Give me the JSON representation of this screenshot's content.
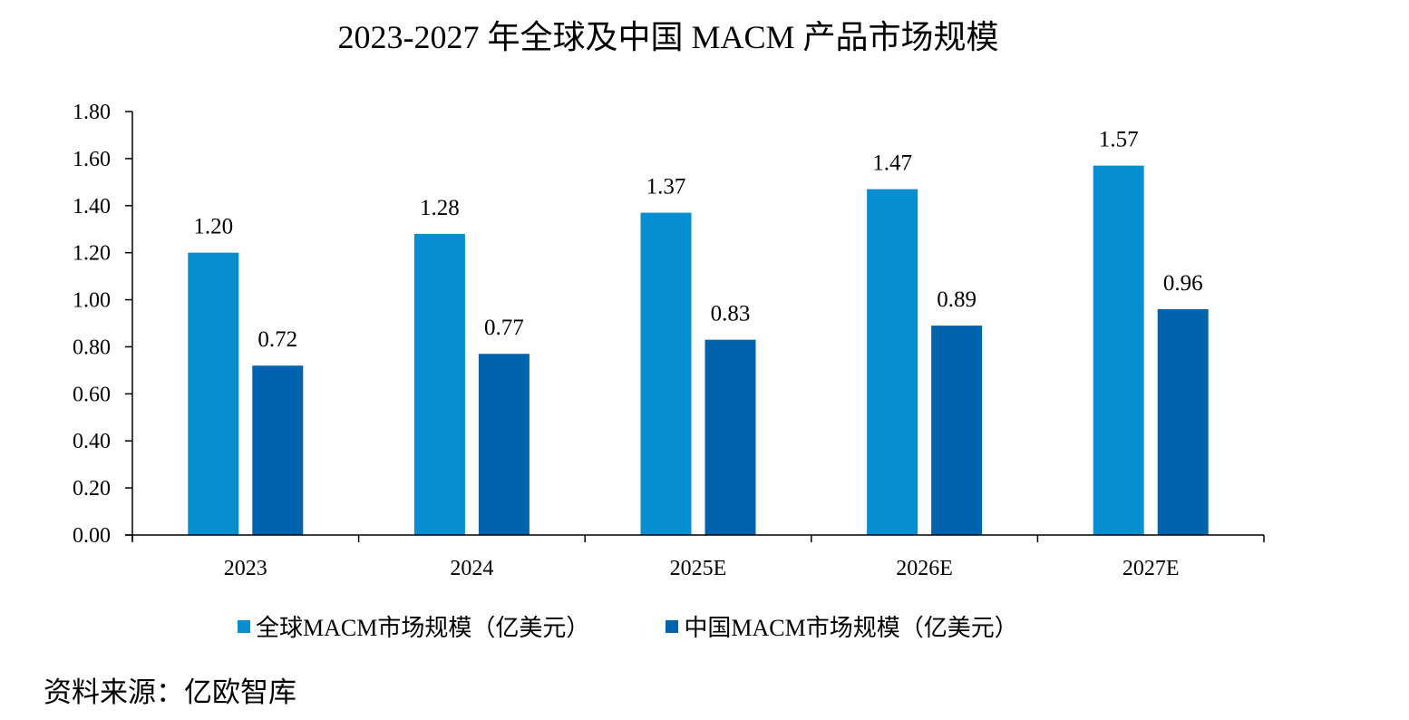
{
  "chart_data": {
    "type": "bar",
    "title": "2023-2027 年全球及中国 MACM 产品市场规模",
    "xlabel": "",
    "ylabel": "",
    "categories": [
      "2023",
      "2024",
      "2025E",
      "2026E",
      "2027E"
    ],
    "series": [
      {
        "name": "全球MACM市场规模（亿美元）",
        "color": "#068FD0",
        "values": [
          1.2,
          1.28,
          1.37,
          1.47,
          1.57
        ]
      },
      {
        "name": "中国MACM市场规模（亿美元）",
        "color": "#0063AE",
        "values": [
          0.72,
          0.77,
          0.83,
          0.89,
          0.96
        ]
      }
    ],
    "ylim": [
      0,
      1.8
    ],
    "yticks": [
      "0.00",
      "0.20",
      "0.40",
      "0.60",
      "0.80",
      "1.00",
      "1.20",
      "1.40",
      "1.60",
      "1.80"
    ],
    "grid": false,
    "legend_position": "bottom",
    "source": "资料来源：亿欧智库"
  }
}
